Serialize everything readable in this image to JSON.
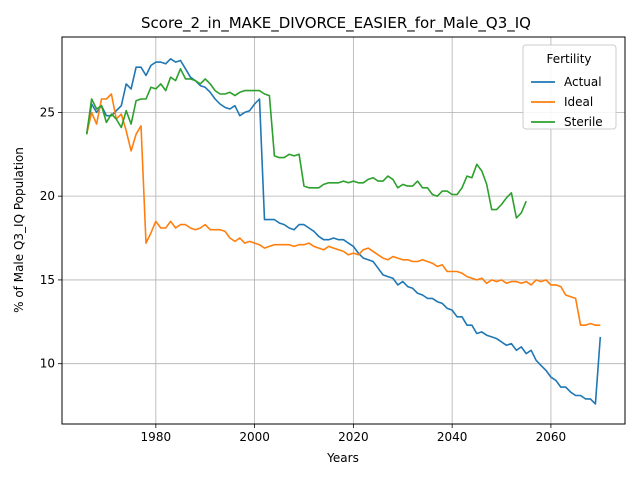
{
  "chart_data": {
    "type": "line",
    "title": "Score_2_in_MAKE_DIVORCE_EASIER_for_Male_Q3_IQ",
    "xlabel": "Years",
    "ylabel": "% of Male Q3_IQ Population",
    "xlim": [
      1961,
      2075
    ],
    "ylim": [
      6.4,
      29.5
    ],
    "xticks": [
      1980,
      2000,
      2020,
      2040,
      2060
    ],
    "yticks": [
      10,
      15,
      20,
      25
    ],
    "grid": true,
    "legend": {
      "title": "Fertility",
      "placement": "top-right"
    },
    "series": [
      {
        "name": "Actual",
        "color": "#1f77b4",
        "x": [
          1966,
          1967,
          1968,
          1969,
          1970,
          1971,
          1972,
          1973,
          1974,
          1975,
          1976,
          1977,
          1978,
          1979,
          1980,
          1981,
          1982,
          1983,
          1984,
          1985,
          1986,
          1987,
          1988,
          1989,
          1990,
          1991,
          1992,
          1993,
          1994,
          1995,
          1996,
          1997,
          1998,
          1999,
          2000,
          2001,
          2002,
          2003,
          2004,
          2005,
          2006,
          2007,
          2008,
          2009,
          2010,
          2011,
          2012,
          2013,
          2014,
          2015,
          2016,
          2017,
          2018,
          2019,
          2020,
          2021,
          2022,
          2023,
          2024,
          2025,
          2026,
          2027,
          2028,
          2029,
          2030,
          2031,
          2032,
          2033,
          2034,
          2035,
          2036,
          2037,
          2038,
          2039,
          2040,
          2041,
          2042,
          2043,
          2044,
          2045,
          2046,
          2047,
          2048,
          2049,
          2050,
          2051,
          2052,
          2053,
          2054,
          2055,
          2056,
          2057,
          2058,
          2059,
          2060,
          2061,
          2062,
          2063,
          2064,
          2065,
          2066,
          2067,
          2068,
          2069,
          2070
        ],
        "values": [
          23.7,
          25.5,
          25.0,
          25.4,
          24.8,
          24.8,
          25.1,
          25.4,
          26.7,
          26.4,
          27.7,
          27.7,
          27.2,
          27.8,
          28.0,
          28.0,
          27.9,
          28.2,
          28.0,
          28.1,
          27.6,
          27.1,
          26.9,
          26.6,
          26.5,
          26.2,
          25.8,
          25.5,
          25.3,
          25.2,
          25.4,
          24.8,
          25.0,
          25.1,
          25.5,
          25.8,
          18.6,
          18.6,
          18.6,
          18.4,
          18.3,
          18.1,
          18.0,
          18.3,
          18.3,
          18.1,
          17.9,
          17.6,
          17.4,
          17.4,
          17.5,
          17.4,
          17.4,
          17.2,
          17.0,
          16.6,
          16.3,
          16.2,
          16.1,
          15.7,
          15.3,
          15.2,
          15.1,
          14.7,
          14.9,
          14.6,
          14.5,
          14.2,
          14.1,
          13.9,
          13.9,
          13.7,
          13.6,
          13.3,
          13.2,
          12.8,
          12.8,
          12.3,
          12.3,
          11.8,
          11.9,
          11.7,
          11.6,
          11.5,
          11.3,
          11.1,
          11.2,
          10.8,
          11.0,
          10.6,
          10.8,
          10.2,
          9.9,
          9.6,
          9.2,
          9.0,
          8.6,
          8.6,
          8.3,
          8.1,
          8.1,
          7.9,
          7.9,
          7.6,
          11.6
        ]
      },
      {
        "name": "Ideal",
        "color": "#ff7f0e",
        "x": [
          1966,
          1967,
          1968,
          1969,
          1970,
          1971,
          1972,
          1973,
          1974,
          1975,
          1976,
          1977,
          1978,
          1979,
          1980,
          1981,
          1982,
          1983,
          1984,
          1985,
          1986,
          1987,
          1988,
          1989,
          1990,
          1991,
          1992,
          1993,
          1994,
          1995,
          1996,
          1997,
          1998,
          1999,
          2000,
          2001,
          2002,
          2003,
          2004,
          2005,
          2006,
          2007,
          2008,
          2009,
          2010,
          2011,
          2012,
          2013,
          2014,
          2015,
          2016,
          2017,
          2018,
          2019,
          2020,
          2021,
          2022,
          2023,
          2024,
          2025,
          2026,
          2027,
          2028,
          2029,
          2030,
          2031,
          2032,
          2033,
          2034,
          2035,
          2036,
          2037,
          2038,
          2039,
          2040,
          2041,
          2042,
          2043,
          2044,
          2045,
          2046,
          2047,
          2048,
          2049,
          2050,
          2051,
          2052,
          2053,
          2054,
          2055,
          2056,
          2057,
          2058,
          2059,
          2060,
          2061,
          2062,
          2063,
          2064,
          2065,
          2066,
          2067,
          2068,
          2069,
          2070
        ],
        "values": [
          23.7,
          25.0,
          24.3,
          25.8,
          25.8,
          26.1,
          24.6,
          24.9,
          23.9,
          22.7,
          23.7,
          24.2,
          17.2,
          17.8,
          18.5,
          18.1,
          18.1,
          18.5,
          18.1,
          18.3,
          18.3,
          18.1,
          18.0,
          18.1,
          18.3,
          18.0,
          18.0,
          18.0,
          17.9,
          17.5,
          17.3,
          17.5,
          17.2,
          17.3,
          17.2,
          17.1,
          16.9,
          17.0,
          17.1,
          17.1,
          17.1,
          17.1,
          17.0,
          17.1,
          17.1,
          17.2,
          17.0,
          16.9,
          16.8,
          17.0,
          16.9,
          16.8,
          16.7,
          16.5,
          16.6,
          16.5,
          16.8,
          16.9,
          16.7,
          16.5,
          16.3,
          16.2,
          16.4,
          16.3,
          16.2,
          16.2,
          16.1,
          16.1,
          16.2,
          16.1,
          16.0,
          15.8,
          15.9,
          15.5,
          15.5,
          15.5,
          15.4,
          15.2,
          15.1,
          15.0,
          15.1,
          14.8,
          15.0,
          14.9,
          15.0,
          14.8,
          14.9,
          14.9,
          14.8,
          14.9,
          14.7,
          15.0,
          14.9,
          15.0,
          14.7,
          14.7,
          14.6,
          14.1,
          14.0,
          13.9,
          12.3,
          12.3,
          12.4,
          12.3,
          12.3
        ]
      },
      {
        "name": "Sterile",
        "color": "#2ca02c",
        "x": [
          1966,
          1967,
          1968,
          1969,
          1970,
          1971,
          1972,
          1973,
          1974,
          1975,
          1976,
          1977,
          1978,
          1979,
          1980,
          1981,
          1982,
          1983,
          1984,
          1985,
          1986,
          1987,
          1988,
          1989,
          1990,
          1991,
          1992,
          1993,
          1994,
          1995,
          1996,
          1997,
          1998,
          1999,
          2000,
          2001,
          2002,
          2003,
          2004,
          2005,
          2006,
          2007,
          2008,
          2009,
          2010,
          2011,
          2012,
          2013,
          2014,
          2015,
          2016,
          2017,
          2018,
          2019,
          2020,
          2021,
          2022,
          2023,
          2024,
          2025,
          2026,
          2027,
          2028,
          2029,
          2030,
          2031,
          2032,
          2033,
          2034,
          2035,
          2036,
          2037,
          2038,
          2039,
          2040,
          2041,
          2042,
          2043,
          2044,
          2045,
          2046,
          2047,
          2048,
          2049,
          2050,
          2051,
          2052,
          2053,
          2054,
          2055
        ],
        "values": [
          23.7,
          25.8,
          25.2,
          25.4,
          24.4,
          24.9,
          24.6,
          24.1,
          25.1,
          24.3,
          25.7,
          25.8,
          25.8,
          26.5,
          26.4,
          26.7,
          26.3,
          27.1,
          26.9,
          27.6,
          27.0,
          27.0,
          26.9,
          26.7,
          27.0,
          26.7,
          26.3,
          26.1,
          26.1,
          26.2,
          26.0,
          26.2,
          26.3,
          26.3,
          26.3,
          26.3,
          26.1,
          26.0,
          22.4,
          22.3,
          22.3,
          22.5,
          22.4,
          22.5,
          20.6,
          20.5,
          20.5,
          20.5,
          20.7,
          20.8,
          20.8,
          20.8,
          20.9,
          20.8,
          20.9,
          20.8,
          20.8,
          21.0,
          21.1,
          20.9,
          20.9,
          21.2,
          21.0,
          20.5,
          20.7,
          20.6,
          20.6,
          20.9,
          20.5,
          20.5,
          20.1,
          20.0,
          20.3,
          20.3,
          20.1,
          20.1,
          20.5,
          21.2,
          21.1,
          21.9,
          21.5,
          20.7,
          19.2,
          19.2,
          19.5,
          19.9,
          20.2,
          18.7,
          19.0,
          19.7
        ]
      }
    ]
  }
}
